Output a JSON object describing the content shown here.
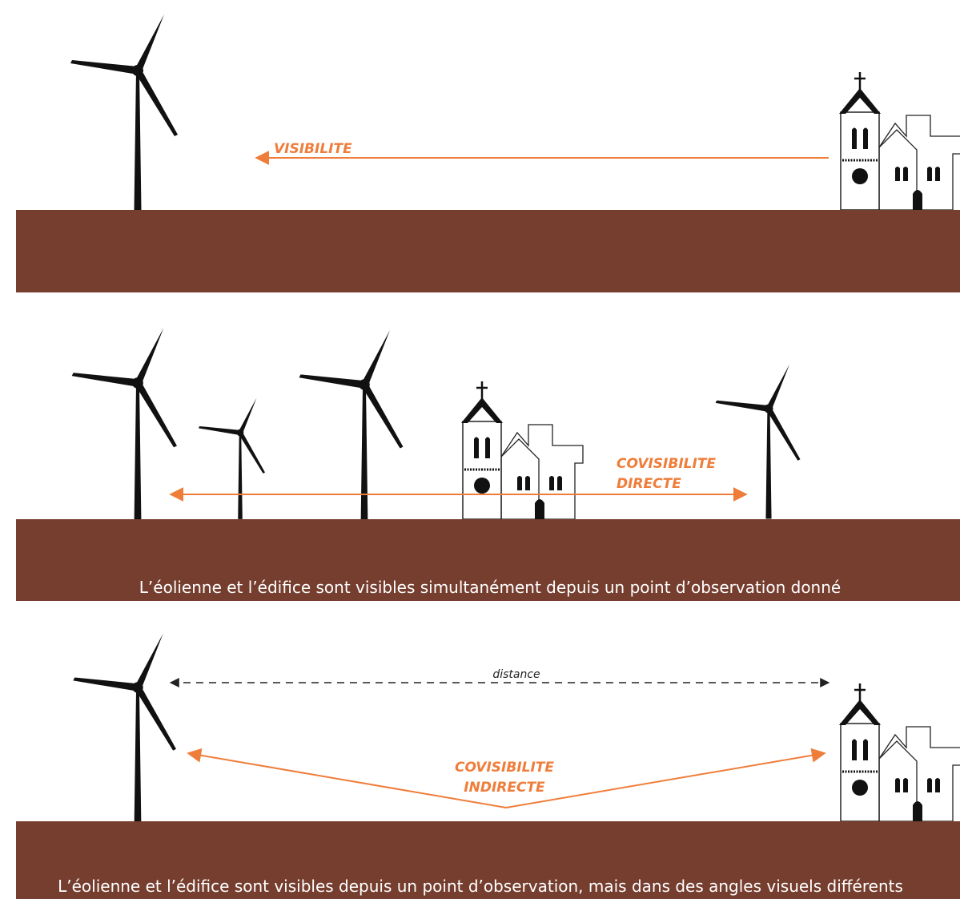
{
  "panels": [
    {
      "label_lines": [
        "VISIBILITE"
      ]
    },
    {
      "label_lines": [
        "COVISIBILITE",
        "DIRECTE"
      ],
      "caption": "L’éolienne et l’édifice sont visibles simultanément depuis un point d’observation donné"
    },
    {
      "distance": "distance",
      "label_lines": [
        "COVISIBILITE",
        "INDIRECTE"
      ],
      "caption": "L’éolienne et l’édifice sont visibles depuis un point d’observation, mais dans des angles visuels différents"
    }
  ]
}
